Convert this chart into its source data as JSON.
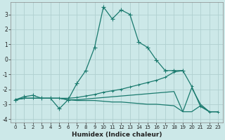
{
  "xlabel": "Humidex (Indice chaleur)",
  "bg_color": "#cce8e8",
  "grid_color": "#b0d0d0",
  "line_color": "#1a7a6e",
  "xlim": [
    -0.5,
    23.5
  ],
  "ylim": [
    -4.2,
    3.8
  ],
  "xticks": [
    0,
    1,
    2,
    3,
    4,
    5,
    6,
    7,
    8,
    9,
    10,
    11,
    12,
    13,
    14,
    15,
    16,
    17,
    18,
    19,
    20,
    21,
    22,
    23
  ],
  "yticks": [
    -4,
    -3,
    -2,
    -1,
    0,
    1,
    2,
    3
  ],
  "line1_x": [
    0,
    1,
    2,
    3,
    4,
    5,
    6,
    7,
    8,
    9,
    10,
    11,
    12,
    13,
    14,
    15,
    16,
    17,
    18,
    19
  ],
  "line1_y": [
    -2.7,
    -2.5,
    -2.4,
    -2.6,
    -2.6,
    -3.3,
    -2.7,
    -1.6,
    -0.75,
    0.8,
    3.5,
    2.7,
    3.3,
    3.0,
    1.15,
    0.8,
    -0.05,
    -0.75,
    -0.75,
    -0.75
  ],
  "line2_x": [
    0,
    1,
    2,
    3,
    4,
    5,
    6,
    7,
    8,
    9,
    10,
    11,
    12,
    13,
    14,
    15,
    16,
    17,
    18,
    19,
    20,
    21,
    22,
    23
  ],
  "line2_y": [
    -2.7,
    -2.6,
    -2.6,
    -2.6,
    -2.6,
    -2.6,
    -2.6,
    -2.55,
    -2.45,
    -2.35,
    -2.2,
    -2.1,
    -2.0,
    -1.85,
    -1.7,
    -1.55,
    -1.4,
    -1.2,
    -0.85,
    -0.75,
    -1.8,
    -3.15,
    -3.5,
    -3.5
  ],
  "line3_x": [
    0,
    1,
    2,
    3,
    4,
    5,
    6,
    7,
    8,
    9,
    10,
    11,
    12,
    13,
    14,
    15,
    16,
    17,
    18,
    19,
    20,
    21,
    22,
    23
  ],
  "line3_y": [
    -2.7,
    -2.6,
    -2.6,
    -2.6,
    -2.6,
    -2.6,
    -2.7,
    -2.7,
    -2.65,
    -2.6,
    -2.55,
    -2.5,
    -2.45,
    -2.4,
    -2.35,
    -2.3,
    -2.25,
    -2.2,
    -2.15,
    -3.5,
    -3.5,
    -3.1,
    -3.5,
    -3.5
  ],
  "line4_x": [
    0,
    1,
    2,
    3,
    4,
    5,
    6,
    7,
    8,
    9,
    10,
    11,
    12,
    13,
    14,
    15,
    16,
    17,
    18,
    19,
    20,
    21,
    22,
    23
  ],
  "line4_y": [
    -2.7,
    -2.6,
    -2.6,
    -2.6,
    -2.6,
    -2.6,
    -2.7,
    -2.75,
    -2.75,
    -2.75,
    -2.8,
    -2.85,
    -2.85,
    -2.9,
    -2.95,
    -3.0,
    -3.0,
    -3.05,
    -3.1,
    -3.5,
    -1.9,
    -3.0,
    -3.5,
    -3.5
  ]
}
